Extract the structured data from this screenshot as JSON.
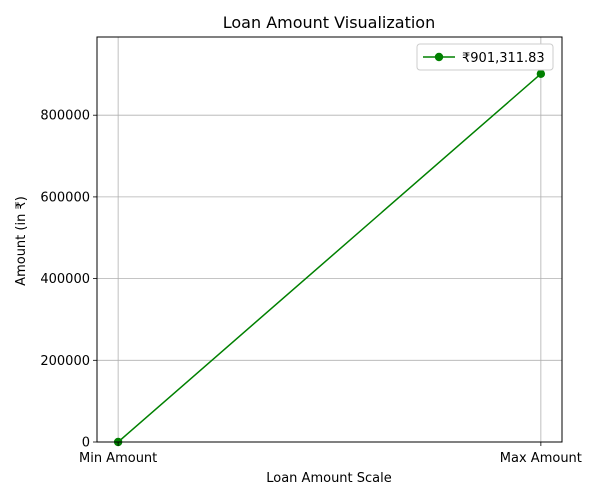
{
  "chart_data": {
    "type": "line",
    "title": "Loan Amount Visualization",
    "xlabel": "Loan Amount Scale",
    "ylabel": "Amount (in ₹)",
    "categories": [
      "Min Amount",
      "Max Amount"
    ],
    "series": [
      {
        "name": "₹901,311.83",
        "values": [
          0,
          901311.83
        ],
        "color": "#008000",
        "marker": "circle"
      }
    ],
    "yticks": [
      0,
      200000,
      400000,
      600000,
      800000
    ],
    "ytick_labels": [
      "0",
      "200000",
      "400000",
      "600000",
      "800000"
    ],
    "ylim": [
      0,
      991443
    ],
    "grid": true,
    "legend_position": "upper right"
  }
}
